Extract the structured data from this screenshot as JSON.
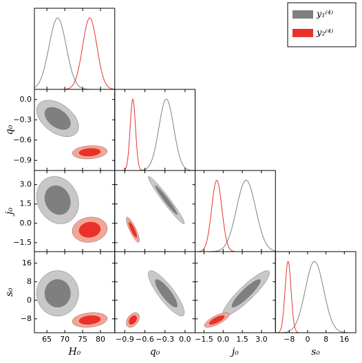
{
  "chart_data": {
    "type": "corner",
    "parameters": [
      {
        "label": "H₀",
        "lim": [
          61.5,
          84
        ],
        "ticks": [
          65,
          70,
          75,
          80
        ]
      },
      {
        "label": "q₀",
        "lim": [
          -1.05,
          0.15
        ],
        "ticks": [
          {
            "value": -0.9,
            "label": "−0.9"
          },
          {
            "value": -0.6,
            "label": "−0.6"
          },
          {
            "value": -0.3,
            "label": "−0.3"
          },
          {
            "value": 0,
            "label": "0.0"
          }
        ]
      },
      {
        "label": "j₀",
        "lim": [
          -2.2,
          4.1
        ],
        "ticks": [
          {
            "value": -1.5,
            "label": "−1.5"
          },
          {
            "value": 0,
            "label": "0.0"
          },
          {
            "value": 1.5,
            "label": "1.5"
          },
          {
            "value": 3,
            "label": "3.0"
          }
        ]
      },
      {
        "label": "s₀",
        "lim": [
          -14,
          21
        ],
        "ticks": [
          {
            "value": -8,
            "label": "−8"
          },
          0,
          8,
          16
        ]
      }
    ],
    "series": [
      {
        "name": "y₁⁽⁴⁾",
        "color": "#7f7f7f",
        "light_color": "#c8c8c8",
        "mean": [
          68,
          -0.28,
          1.8,
          3
        ],
        "sigma": [
          2.4,
          0.11,
          0.75,
          4
        ],
        "corr": [
          [
            1,
            -0.45,
            -0.15,
            0
          ],
          [
            -0.45,
            1,
            -0.97,
            -0.85
          ],
          [
            -0.15,
            -0.97,
            1,
            0.9
          ],
          [
            0,
            -0.85,
            0.9,
            1
          ]
        ]
      },
      {
        "name": "y₂⁽⁴⁾",
        "color": "#e8312a",
        "light_color": "#f4a596",
        "mean": [
          77,
          -0.78,
          -0.5,
          -8.5
        ],
        "sigma": [
          2,
          0.04,
          0.4,
          1.3
        ],
        "corr": [
          [
            1,
            0.15,
            0.1,
            0.2
          ],
          [
            0.15,
            1,
            -0.85,
            0.4
          ],
          [
            0.1,
            -0.85,
            1,
            0.75
          ],
          [
            0.2,
            0.4,
            0.75,
            1
          ]
        ]
      }
    ],
    "legend": "upper right"
  }
}
